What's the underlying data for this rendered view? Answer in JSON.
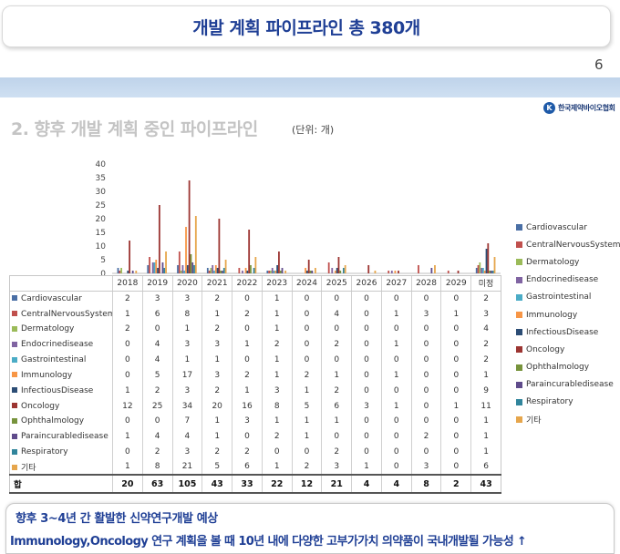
{
  "header": {
    "title": "개발 계획 파이프라인 총 380개"
  },
  "page_number": "6",
  "association": {
    "name": "한국제약바이오협회",
    "logo_mark": "K"
  },
  "section": {
    "title": "2. 향후 개발 계획 중인 파이프라인",
    "unit": "(단위: 개)"
  },
  "table": {
    "total_label": "합"
  },
  "footer": {
    "line1": "향후 3~4년 간 활발한 신약연구개발 예상",
    "line2": "Immunology,Oncology 연구 계획을 볼 때 10년 내에 다양한 고부가가치 의약품이 국내개발될 가능성 ↑"
  },
  "chart_data": {
    "type": "bar",
    "categories": [
      "2018",
      "2019",
      "2020",
      "2021",
      "2022",
      "2023",
      "2024",
      "2025",
      "2026",
      "2027",
      "2028",
      "2029",
      "미정"
    ],
    "ylim": [
      0,
      40
    ],
    "yticks": [
      "0",
      "5",
      "10",
      "15",
      "20",
      "25",
      "30",
      "35",
      "40"
    ],
    "grid": false,
    "legend_position": "right",
    "series": [
      {
        "name": "Cardiovascular",
        "color": "#4a6fa5",
        "values": [
          2,
          3,
          3,
          2,
          0,
          1,
          0,
          0,
          0,
          0,
          0,
          0,
          2
        ]
      },
      {
        "name": "CentralNervousSystem",
        "color": "#c0504d",
        "values": [
          1,
          6,
          8,
          1,
          2,
          1,
          0,
          4,
          0,
          1,
          3,
          1,
          3
        ]
      },
      {
        "name": "Dermatology",
        "color": "#9bbb59",
        "values": [
          2,
          0,
          1,
          2,
          0,
          1,
          0,
          0,
          0,
          0,
          0,
          0,
          4
        ]
      },
      {
        "name": "Endocrinedisease",
        "color": "#8064a2",
        "values": [
          0,
          4,
          3,
          3,
          1,
          2,
          0,
          2,
          0,
          1,
          0,
          0,
          2
        ]
      },
      {
        "name": "Gastrointestinal",
        "color": "#4bacc6",
        "values": [
          0,
          4,
          1,
          1,
          0,
          1,
          0,
          0,
          0,
          0,
          0,
          0,
          2
        ]
      },
      {
        "name": "Immunology",
        "color": "#f79646",
        "values": [
          0,
          5,
          17,
          3,
          2,
          1,
          2,
          1,
          0,
          1,
          0,
          0,
          1
        ]
      },
      {
        "name": "InfectiousDisease",
        "color": "#2c4d75",
        "values": [
          1,
          2,
          3,
          2,
          1,
          3,
          1,
          2,
          0,
          0,
          0,
          0,
          9
        ]
      },
      {
        "name": "Oncology",
        "color": "#9c3532",
        "values": [
          12,
          25,
          34,
          20,
          16,
          8,
          5,
          6,
          3,
          1,
          0,
          1,
          11
        ]
      },
      {
        "name": "Ophthalmology",
        "color": "#77933c",
        "values": [
          0,
          0,
          7,
          1,
          3,
          1,
          1,
          1,
          0,
          0,
          0,
          0,
          1
        ]
      },
      {
        "name": "Paraincurabledisease",
        "color": "#5f4b8b",
        "values": [
          1,
          4,
          4,
          1,
          0,
          2,
          1,
          0,
          0,
          0,
          2,
          0,
          1
        ]
      },
      {
        "name": "Respiratory",
        "color": "#31859c",
        "values": [
          0,
          2,
          3,
          2,
          2,
          0,
          0,
          2,
          0,
          0,
          0,
          0,
          1
        ]
      },
      {
        "name": "기타",
        "color": "#e6a64c",
        "values": [
          1,
          8,
          21,
          5,
          6,
          1,
          2,
          3,
          1,
          0,
          3,
          0,
          6
        ]
      }
    ],
    "totals": [
      "20",
      "63",
      "105",
      "43",
      "33",
      "22",
      "12",
      "21",
      "4",
      "4",
      "8",
      "2",
      "43"
    ]
  }
}
